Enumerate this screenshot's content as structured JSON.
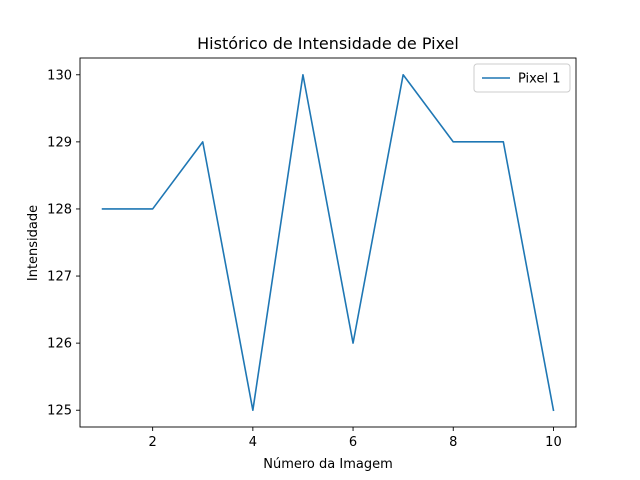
{
  "chart_data": {
    "type": "line",
    "title": "Histórico de Intensidade de Pixel",
    "xlabel": "Número da Imagem",
    "ylabel": "Intensidade",
    "x": [
      1,
      2,
      3,
      4,
      5,
      6,
      7,
      8,
      9,
      10
    ],
    "series": [
      {
        "name": "Pixel 1",
        "color": "#1f77b4",
        "values": [
          128,
          128,
          129,
          125,
          130,
          126,
          130,
          129,
          129,
          125
        ]
      }
    ],
    "xlim": [
      0.55,
      10.45
    ],
    "ylim": [
      124.75,
      130.25
    ],
    "xticks": [
      2,
      4,
      6,
      8,
      10
    ],
    "yticks": [
      125,
      126,
      127,
      128,
      129,
      130
    ],
    "grid": false,
    "legend_position": "top-right"
  }
}
